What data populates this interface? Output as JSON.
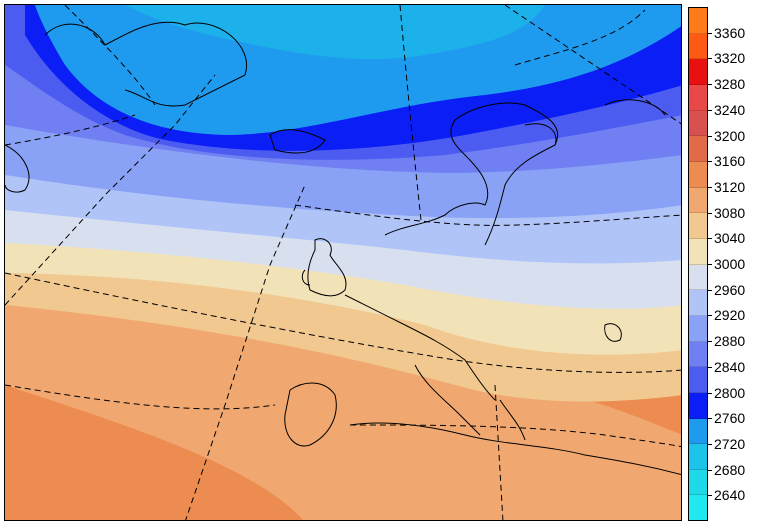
{
  "map": {
    "variable": "geopotential-height",
    "projection": "polar-stereographic",
    "band_colors": [
      {
        "level": 2640,
        "color": "#1fd8e8"
      },
      {
        "level": 2680,
        "color": "#1ec3ea"
      },
      {
        "level": 2720,
        "color": "#1e9bee"
      },
      {
        "level": 2760,
        "color": "#0a1ef5"
      },
      {
        "level": 2800,
        "color": "#4c5cf0"
      },
      {
        "level": 2840,
        "color": "#7080f2"
      },
      {
        "level": 2880,
        "color": "#8aa2f6"
      },
      {
        "level": 2920,
        "color": "#b0c4f8"
      },
      {
        "level": 2960,
        "color": "#d8e0f0"
      },
      {
        "level": 3000,
        "color": "#f2e2b8"
      },
      {
        "level": 3040,
        "color": "#f0c890"
      },
      {
        "level": 3080,
        "color": "#f0a870"
      },
      {
        "level": 3120,
        "color": "#ec8c50"
      }
    ],
    "graticule": "dashed",
    "coastlines": true
  },
  "legend": {
    "labels": [
      "3360",
      "3320",
      "3280",
      "3240",
      "3200",
      "3160",
      "3120",
      "3080",
      "3040",
      "3000",
      "2960",
      "2920",
      "2880",
      "2840",
      "2800",
      "2760",
      "2720",
      "2680",
      "2640"
    ],
    "swatch_colors": [
      "#ff7a1a",
      "#ff5a14",
      "#e81010",
      "#e84848",
      "#d85050",
      "#e26a48",
      "#ec8c50",
      "#f0a870",
      "#f0c890",
      "#f2e2b8",
      "#d8e0f0",
      "#b0c4f8",
      "#8aa2f6",
      "#7080f2",
      "#4c5cf0",
      "#0a1ef5",
      "#1e9bee",
      "#1ec3ea",
      "#1fd8e8",
      "#22e8f0"
    ]
  }
}
